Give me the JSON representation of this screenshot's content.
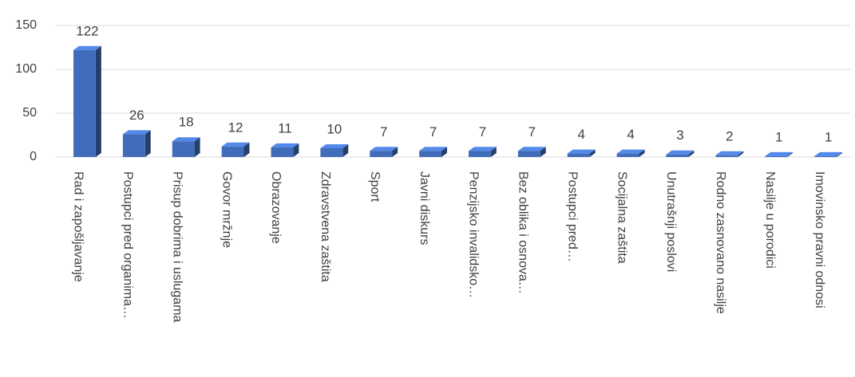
{
  "chart_data": {
    "type": "bar3d",
    "categories": [
      "Rad i zapošljavanje",
      "Postupci pred organima…",
      "Prisup dobrima i uslugama",
      "Govor mržnje",
      "Obrazovanje",
      "Zdravstvena zaštita",
      "Sport",
      "Javni diskurs",
      "Penzijsko invalidsko…",
      "Bez oblika i osnova…",
      "Postupci pred…",
      "Socijalna zaštita",
      "Unutrašnji poslovi",
      "Rodno zasnovano nasilje",
      "Nasilje u porodici",
      "Imovinsko pravni odnosi"
    ],
    "values": [
      122,
      26,
      18,
      12,
      11,
      10,
      7,
      7,
      7,
      7,
      4,
      4,
      3,
      2,
      1,
      1
    ],
    "color": "#4472c4",
    "ylim": [
      0,
      150
    ],
    "yticks": [
      0,
      50,
      100,
      150
    ],
    "grid": true
  }
}
